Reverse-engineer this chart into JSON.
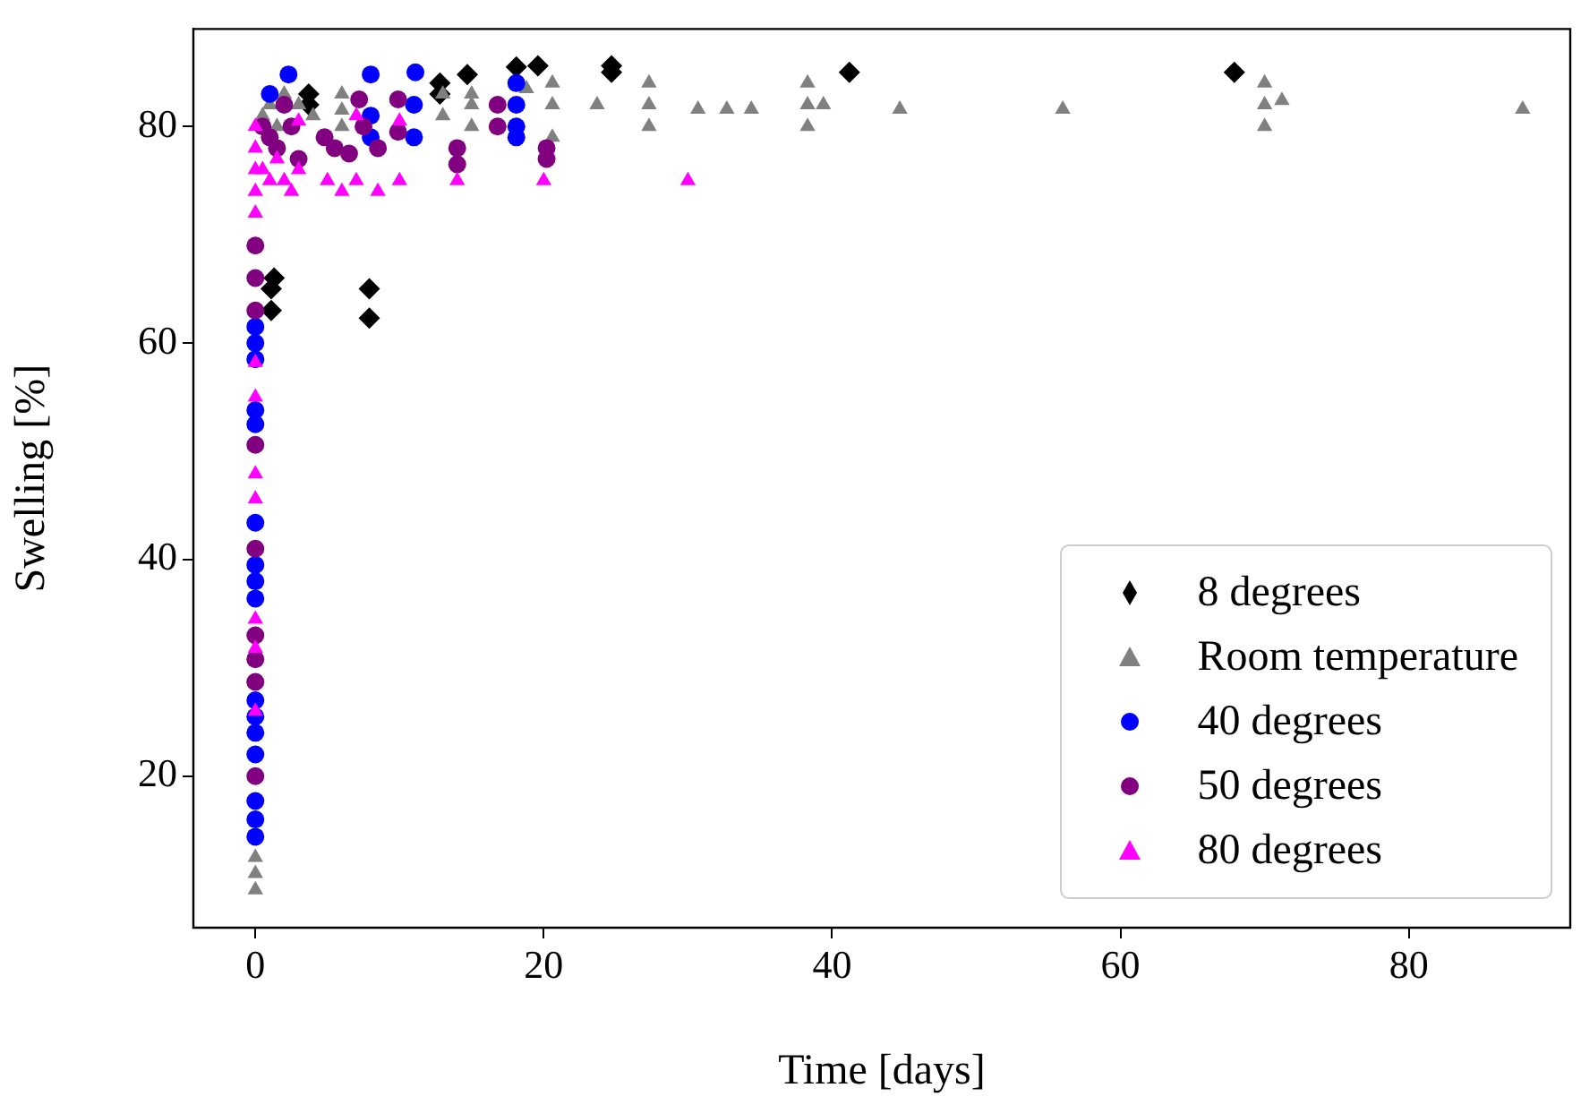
{
  "chart_data": {
    "type": "scatter",
    "xlabel": "Time [days]",
    "ylabel": "Swelling [%]",
    "xlim": [
      -4.3,
      91.2
    ],
    "ylim": [
      6,
      89
    ],
    "xticks": [
      0,
      20,
      40,
      60,
      80
    ],
    "yticks": [
      20,
      40,
      60,
      80
    ],
    "grid": false,
    "legend": "bottom right",
    "series": [
      {
        "name": "8 degrees",
        "color": "#000000",
        "marker": "diamond",
        "x": [
          1.1,
          1.1,
          1.3,
          3.7,
          3.7,
          7.9,
          7.9,
          12.8,
          12.8,
          14.7,
          18.1,
          19.6,
          24.7,
          24.7,
          41.2,
          67.9
        ],
        "values": [
          65,
          63,
          66,
          83,
          82,
          65,
          62.3,
          84,
          83,
          84.8,
          85.5,
          85.6,
          85.6,
          85,
          85,
          85
        ]
      },
      {
        "name": "Room temperature",
        "color": "#808080",
        "marker": "triangle",
        "x": [
          0,
          0,
          0,
          0.5,
          1,
          1.5,
          2,
          3,
          4,
          6,
          6,
          6,
          13,
          13,
          15,
          15,
          15,
          18.8,
          20.6,
          20.6,
          20.6,
          23.7,
          27.3,
          27.3,
          27.3,
          30.7,
          32.7,
          34.4,
          38.3,
          38.3,
          38.3,
          39.4,
          44.7,
          56,
          70,
          70,
          70,
          71.2,
          87.9
        ],
        "values": [
          12.5,
          11,
          9.5,
          81,
          82,
          80,
          83,
          82,
          81,
          83,
          81.5,
          80,
          83,
          81,
          80,
          82,
          83,
          83.5,
          79,
          82,
          84,
          82,
          80,
          82,
          84,
          81.6,
          81.6,
          81.6,
          80,
          82,
          84,
          82,
          81.6,
          81.6,
          80,
          82,
          84,
          82.4,
          81.6
        ]
      },
      {
        "name": "40 degrees",
        "color": "#0000ff",
        "marker": "circle",
        "x": [
          0,
          0,
          0,
          0,
          0,
          0,
          0,
          0,
          0,
          0,
          0,
          0,
          0,
          0,
          0,
          0,
          1,
          2.3,
          8,
          8,
          8,
          11.1,
          11,
          11,
          18.1,
          18.1,
          18.1,
          18.1
        ],
        "values": [
          61.5,
          60,
          58.5,
          53.8,
          52.5,
          43.4,
          39.5,
          38,
          36.4,
          27,
          25.5,
          24,
          22,
          17.7,
          16,
          14.4,
          83,
          84.8,
          84.8,
          81,
          79,
          85,
          82,
          79,
          84,
          82,
          80,
          79
        ]
      },
      {
        "name": "50 degrees",
        "color": "#800080",
        "marker": "circle",
        "x": [
          0,
          0,
          0,
          0,
          0,
          0,
          0,
          0,
          0,
          0.5,
          1,
          1.5,
          2,
          2.5,
          3,
          4.8,
          5.5,
          6.5,
          7.2,
          7.5,
          8.5,
          9.9,
          9.9,
          14,
          14,
          16.8,
          16.8,
          20.2,
          20.2
        ],
        "values": [
          69,
          66,
          63,
          50.6,
          41,
          33,
          30.8,
          28.7,
          20,
          80,
          79,
          78,
          82,
          80,
          77,
          79,
          78,
          77.5,
          82.5,
          80,
          78,
          82.5,
          79.5,
          78,
          76.5,
          82,
          80,
          78,
          77
        ]
      },
      {
        "name": "80 degrees",
        "color": "#ff00ff",
        "marker": "triangle",
        "x": [
          0,
          0,
          0,
          0,
          0,
          0,
          0,
          0,
          0,
          0,
          0,
          0,
          0.5,
          1,
          1.5,
          2,
          2.5,
          3,
          3,
          5,
          6,
          7,
          7,
          8.5,
          10,
          10,
          14,
          20,
          30
        ],
        "values": [
          80,
          78,
          76,
          74,
          72,
          58.2,
          55,
          47.9,
          45.6,
          34.5,
          31.8,
          26,
          76,
          75,
          77,
          75,
          74,
          80.5,
          76,
          75,
          74,
          81,
          75,
          74,
          80.5,
          75,
          75,
          75,
          75
        ]
      }
    ]
  }
}
